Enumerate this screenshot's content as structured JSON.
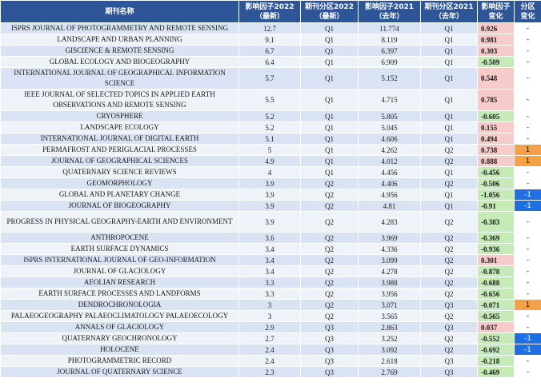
{
  "headers": [
    [
      "期刊名称"
    ],
    [
      "影响因子2022",
      "（最新）"
    ],
    [
      "期刊分区2022",
      "（最新）"
    ],
    [
      "影响因子2021",
      "（去年）"
    ],
    [
      "期刊分区2021",
      "（去年）"
    ],
    [
      "影响因子",
      "变化"
    ],
    [
      "分区",
      "变化"
    ]
  ],
  "colors": {
    "header_bg": "#2e5597",
    "positive_change": "#f8cbcb",
    "negative_change": "#c6eab8",
    "quartile_up": "#f4a14a",
    "quartile_down": "#1f6fe0"
  },
  "rows": [
    {
      "name": "ISPRS JOURNAL OF PHOTOGRAMMETRY AND REMOTE SENSING",
      "if2022": "12.7",
      "q2022": "Q1",
      "if2021": "11.774",
      "q2021": "Q1",
      "if_change": "0.926",
      "q_change": "-"
    },
    {
      "name": "LANDSCAPE AND URBAN PLANNING",
      "if2022": "9.1",
      "q2022": "Q1",
      "if2021": "8.119",
      "q2021": "Q1",
      "if_change": "0.981",
      "q_change": "-"
    },
    {
      "name": "GISCIENCE & REMOTE SENSING",
      "if2022": "6.7",
      "q2022": "Q1",
      "if2021": "6.397",
      "q2021": "Q1",
      "if_change": "0.303",
      "q_change": "-"
    },
    {
      "name": "GLOBAL ECOLOGY AND BIOGEOGRAPHY",
      "if2022": "6.4",
      "q2022": "Q1",
      "if2021": "6.909",
      "q2021": "Q1",
      "if_change": "-0.509",
      "q_change": "-"
    },
    {
      "name": "INTERNATIONAL JOURNAL OF GEOGRAPHICAL INFORMATION SCIENCE",
      "if2022": "5.7",
      "q2022": "Q1",
      "if2021": "5.152",
      "q2021": "Q1",
      "if_change": "0.548",
      "q_change": "-"
    },
    {
      "name": "IEEE JOURNAL OF SELECTED TOPICS IN APPLIED EARTH OBSERVATIONS AND REMOTE SENSING",
      "if2022": "5.5",
      "q2022": "Q1",
      "if2021": "4.715",
      "q2021": "Q1",
      "if_change": "0.785",
      "q_change": "-"
    },
    {
      "name": "CRYOSPHERE",
      "if2022": "5.2",
      "q2022": "Q1",
      "if2021": "5.805",
      "q2021": "Q1",
      "if_change": "-0.605",
      "q_change": "-"
    },
    {
      "name": "LANDSCAPE ECOLOGY",
      "if2022": "5.2",
      "q2022": "Q1",
      "if2021": "5.045",
      "q2021": "Q1",
      "if_change": "0.155",
      "q_change": "-"
    },
    {
      "name": "INTERNATIONAL JOURNAL OF DIGITAL EARTH",
      "if2022": "5.1",
      "q2022": "Q1",
      "if2021": "4.606",
      "q2021": "Q1",
      "if_change": "0.494",
      "q_change": "-"
    },
    {
      "name": "PERMAFROST AND PERIGLACIAL PROCESSES",
      "if2022": "5",
      "q2022": "Q1",
      "if2021": "4.262",
      "q2021": "Q2",
      "if_change": "0.738",
      "q_change": "1"
    },
    {
      "name": "JOURNAL OF GEOGRAPHICAL SCIENCES",
      "if2022": "4.9",
      "q2022": "Q1",
      "if2021": "4.012",
      "q2021": "Q2",
      "if_change": "0.888",
      "q_change": "1"
    },
    {
      "name": "QUATERNARY SCIENCE REVIEWS",
      "if2022": "4",
      "q2022": "Q1",
      "if2021": "4.456",
      "q2021": "Q1",
      "if_change": "-0.456",
      "q_change": "-"
    },
    {
      "name": "GEOMORPHOLOGY",
      "if2022": "3.9",
      "q2022": "Q2",
      "if2021": "4.406",
      "q2021": "Q2",
      "if_change": "-0.506",
      "q_change": "-"
    },
    {
      "name": "GLOBAL AND PLANETARY CHANGE",
      "if2022": "3.9",
      "q2022": "Q2",
      "if2021": "4.956",
      "q2021": "Q1",
      "if_change": "-1.056",
      "q_change": "-1"
    },
    {
      "name": "JOURNAL OF BIOGEOGRAPHY",
      "if2022": "3.9",
      "q2022": "Q2",
      "if2021": "4.81",
      "q2021": "Q1",
      "if_change": "-0.91",
      "q_change": "-1"
    },
    {
      "name": "PROGRESS IN PHYSICAL GEOGRAPHY-EARTH AND ENVIRONMENT",
      "if2022": "3.9",
      "q2022": "Q2",
      "if2021": "4.283",
      "q2021": "Q2",
      "if_change": "-0.383",
      "q_change": "-"
    },
    {
      "name": "ANTHROPOCENE",
      "if2022": "3.6",
      "q2022": "Q2",
      "if2021": "3.969",
      "q2021": "Q2",
      "if_change": "-0.369",
      "q_change": "-"
    },
    {
      "name": "EARTH SURFACE DYNAMICS",
      "if2022": "3.4",
      "q2022": "Q2",
      "if2021": "4.336",
      "q2021": "Q2",
      "if_change": "-0.936",
      "q_change": "-"
    },
    {
      "name": "ISPRS INTERNATIONAL JOURNAL OF GEO-INFORMATION",
      "if2022": "3.4",
      "q2022": "Q2",
      "if2021": "3.099",
      "q2021": "Q2",
      "if_change": "0.301",
      "q_change": "-"
    },
    {
      "name": "JOURNAL OF GLACIOLOGY",
      "if2022": "3.4",
      "q2022": "Q2",
      "if2021": "4.278",
      "q2021": "Q2",
      "if_change": "-0.878",
      "q_change": "-"
    },
    {
      "name": "AEOLIAN RESEARCH",
      "if2022": "3.3",
      "q2022": "Q2",
      "if2021": "3.988",
      "q2021": "Q2",
      "if_change": "-0.688",
      "q_change": "-"
    },
    {
      "name": "EARTH SURFACE PROCESSES AND LANDFORMS",
      "if2022": "3.3",
      "q2022": "Q2",
      "if2021": "3.956",
      "q2021": "Q2",
      "if_change": "-0.656",
      "q_change": "-"
    },
    {
      "name": "DENDROCHRONOLOGIA",
      "if2022": "3",
      "q2022": "Q2",
      "if2021": "3.071",
      "q2021": "Q3",
      "if_change": "-0.071",
      "q_change": "1"
    },
    {
      "name": "PALAEOGEOGRAPHY PALAEOCLIMATOLOGY PALAEOECOLOGY",
      "if2022": "3",
      "q2022": "Q2",
      "if2021": "3.565",
      "q2021": "Q2",
      "if_change": "-0.565",
      "q_change": "-"
    },
    {
      "name": "ANNALS OF GLACIOLOGY",
      "if2022": "2.9",
      "q2022": "Q3",
      "if2021": "2.863",
      "q2021": "Q3",
      "if_change": "0.037",
      "q_change": "-"
    },
    {
      "name": "QUATERNARY GEOCHRONOLOGY",
      "if2022": "2.7",
      "q2022": "Q3",
      "if2021": "3.252",
      "q2021": "Q2",
      "if_change": "-0.552",
      "q_change": "-1"
    },
    {
      "name": "HOLOCENE",
      "if2022": "2.4",
      "q2022": "Q3",
      "if2021": "3.092",
      "q2021": "Q2",
      "if_change": "-0.692",
      "q_change": "-1"
    },
    {
      "name": "PHOTOGRAMMETRIC RECORD",
      "if2022": "2.4",
      "q2022": "Q3",
      "if2021": "2.618",
      "q2021": "Q3",
      "if_change": "-0.218",
      "q_change": "-"
    },
    {
      "name": "JOURNAL OF QUATERNARY SCIENCE",
      "if2022": "2.3",
      "q2022": "Q3",
      "if2021": "2.769",
      "q2021": "Q3",
      "if_change": "-0.469",
      "q_change": "-"
    }
  ]
}
